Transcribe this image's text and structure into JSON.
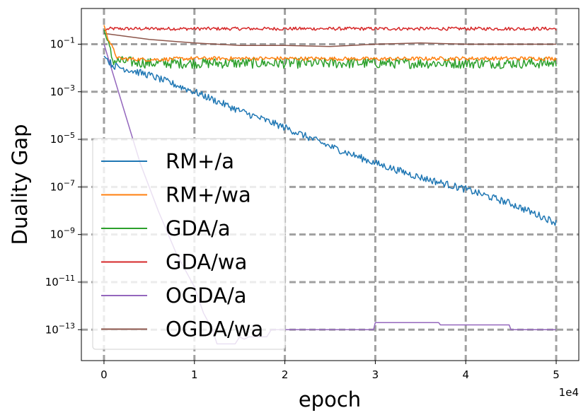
{
  "chart_data": {
    "type": "line",
    "xlabel": "epoch",
    "ylabel": "Duality Gap",
    "x_offset_label": "1e4",
    "x_ticks": [
      0,
      1,
      2,
      3,
      4,
      5
    ],
    "x_tick_labels": [
      "0",
      "1",
      "2",
      "3",
      "4",
      "5"
    ],
    "y_scale": "log",
    "y_tick_exponents": [
      -1,
      -3,
      -5,
      -7,
      -9,
      -11,
      -13
    ],
    "y_tick_labels": [
      {
        "base": "10",
        "exp": "−1"
      },
      {
        "base": "10",
        "exp": "−3"
      },
      {
        "base": "10",
        "exp": "−5"
      },
      {
        "base": "10",
        "exp": "−7"
      },
      {
        "base": "10",
        "exp": "−9"
      },
      {
        "base": "10",
        "exp": "−11"
      },
      {
        "base": "10",
        "exp": "−13"
      }
    ],
    "xlim": [
      -0.25,
      5.25
    ],
    "ylim_log10": [
      -14.3,
      0.5
    ],
    "grid": true,
    "legend_position": "lower-left",
    "series": [
      {
        "name": "RM+/a",
        "color": "#1f77b4",
        "points": [
          [
            0,
            -1.5
          ],
          [
            0.1,
            -1.9
          ],
          [
            0.3,
            -2.1
          ],
          [
            0.5,
            -2.3
          ],
          [
            1.0,
            -3.0
          ],
          [
            1.5,
            -3.8
          ],
          [
            2.0,
            -4.5
          ],
          [
            2.5,
            -5.3
          ],
          [
            3.0,
            -6.0
          ],
          [
            3.5,
            -6.6
          ],
          [
            4.0,
            -7.1
          ],
          [
            4.5,
            -7.7
          ],
          [
            5.0,
            -8.5
          ]
        ],
        "noise": 0.15
      },
      {
        "name": "RM+/wa",
        "color": "#ff7f0e",
        "points": [
          [
            0,
            -0.2
          ],
          [
            0.05,
            -0.8
          ],
          [
            0.15,
            -1.6
          ],
          [
            0.5,
            -1.65
          ],
          [
            1.0,
            -1.6
          ],
          [
            2.0,
            -1.6
          ],
          [
            3.0,
            -1.62
          ],
          [
            4.0,
            -1.6
          ],
          [
            5.0,
            -1.6
          ]
        ],
        "noise": 0.08
      },
      {
        "name": "GDA/a",
        "color": "#2ca02c",
        "points": [
          [
            0,
            -0.4
          ],
          [
            0.1,
            -1.7
          ],
          [
            0.5,
            -1.8
          ],
          [
            1.0,
            -1.8
          ],
          [
            2.0,
            -1.8
          ],
          [
            3.0,
            -1.8
          ],
          [
            4.0,
            -1.8
          ],
          [
            5.0,
            -1.8
          ]
        ],
        "noise": 0.22
      },
      {
        "name": "GDA/wa",
        "color": "#d62728",
        "points": [
          [
            0,
            -0.45
          ],
          [
            0.05,
            -0.35
          ],
          [
            1.0,
            -0.35
          ],
          [
            2.0,
            -0.35
          ],
          [
            3.0,
            -0.35
          ],
          [
            4.0,
            -0.35
          ],
          [
            5.0,
            -0.35
          ]
        ],
        "noise": 0.07
      },
      {
        "name": "OGDA/a",
        "color": "#9467bd",
        "points": [
          [
            0,
            -1.0
          ],
          [
            0.2,
            -3.5
          ],
          [
            0.4,
            -6.0
          ],
          [
            0.6,
            -8.0
          ],
          [
            0.8,
            -9.8
          ],
          [
            1.0,
            -11.2
          ],
          [
            1.1,
            -12.3
          ],
          [
            1.2,
            -13.0
          ],
          [
            1.25,
            -13.6
          ],
          [
            1.3,
            -13.6
          ],
          [
            1.45,
            -13.6
          ],
          [
            1.5,
            -13.3
          ],
          [
            1.55,
            -13.4
          ],
          [
            1.6,
            -13.3
          ],
          [
            1.8,
            -13.3
          ],
          [
            1.85,
            -13.0
          ],
          [
            2.0,
            -13.0
          ],
          [
            2.5,
            -13.0
          ],
          [
            2.98,
            -13.0
          ],
          [
            3.0,
            -12.7
          ],
          [
            3.7,
            -12.7
          ],
          [
            3.72,
            -12.8
          ],
          [
            4.48,
            -12.8
          ],
          [
            4.5,
            -13.0
          ],
          [
            5.0,
            -13.0
          ]
        ],
        "noise": 0.0
      },
      {
        "name": "OGDA/wa",
        "color": "#8c564b",
        "points": [
          [
            0,
            -0.55
          ],
          [
            0.5,
            -0.8
          ],
          [
            1.0,
            -0.95
          ],
          [
            1.5,
            -1.05
          ],
          [
            2.0,
            -1.05
          ],
          [
            2.5,
            -1.1
          ],
          [
            3.0,
            -1.0
          ],
          [
            3.5,
            -0.95
          ],
          [
            4.0,
            -1.0
          ],
          [
            5.0,
            -1.0
          ]
        ],
        "noise": 0.0
      }
    ]
  }
}
